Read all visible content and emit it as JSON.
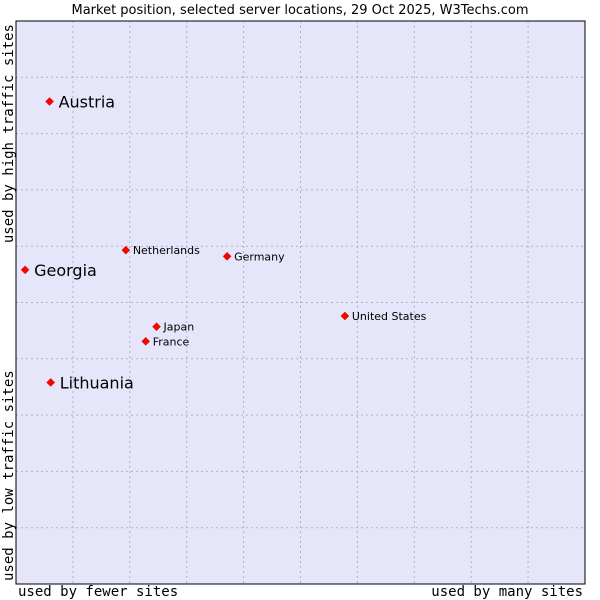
{
  "chart_data": {
    "type": "scatter",
    "title": "Market position, selected server locations, 29 Oct 2025, W3Techs.com",
    "xlabel_left": "used by fewer sites",
    "xlabel_right": "used by many sites",
    "ylabel_top": "used by high traffic sites",
    "ylabel_bottom": "used by low traffic sites",
    "grid": true,
    "xlim": [
      0,
      1
    ],
    "ylim": [
      0,
      1
    ],
    "points": [
      {
        "name": "Austria",
        "x": 0.059,
        "y": 0.857,
        "emphasis": "large"
      },
      {
        "name": "Georgia",
        "x": 0.016,
        "y": 0.558,
        "emphasis": "large"
      },
      {
        "name": "Lithuania",
        "x": 0.061,
        "y": 0.358,
        "emphasis": "large"
      },
      {
        "name": "Netherlands",
        "x": 0.193,
        "y": 0.593,
        "emphasis": "small"
      },
      {
        "name": "Germany",
        "x": 0.371,
        "y": 0.582,
        "emphasis": "small"
      },
      {
        "name": "United States",
        "x": 0.578,
        "y": 0.476,
        "emphasis": "small"
      },
      {
        "name": "Japan",
        "x": 0.247,
        "y": 0.457,
        "emphasis": "small"
      },
      {
        "name": "France",
        "x": 0.228,
        "y": 0.431,
        "emphasis": "small"
      }
    ]
  },
  "colors": {
    "plot_background": "#e6e6fa",
    "grid": "#b0b0c8",
    "border": "#000000",
    "point": "#ff0000",
    "point_edge": "#cc0000"
  }
}
